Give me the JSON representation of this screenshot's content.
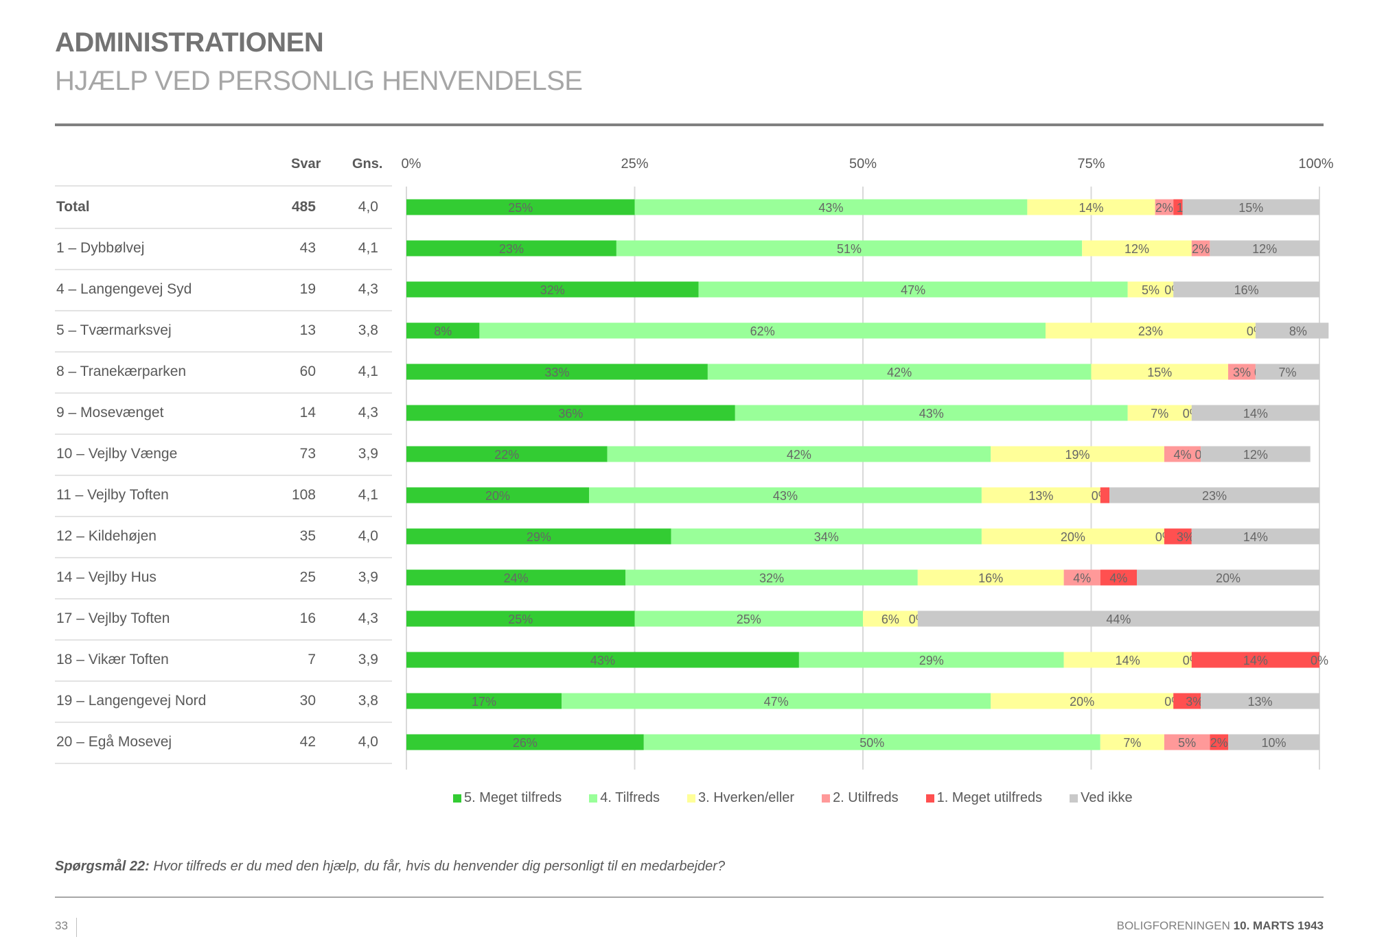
{
  "header": {
    "title": "ADMINISTRATIONEN",
    "subtitle": "HJÆLP VED PERSONLIG HENVENDELSE"
  },
  "table": {
    "col_svar": "Svar",
    "col_gns": "Gns."
  },
  "chart_data": {
    "type": "bar",
    "orientation": "horizontal",
    "stacked": true,
    "xlim": [
      0,
      100
    ],
    "x_ticks": [
      "0%",
      "25%",
      "50%",
      "75%",
      "100%"
    ],
    "grid": true,
    "legend_position": "bottom",
    "categories": [
      "Total",
      "1 – Dybbølvej",
      "4 – Langengevej Syd",
      "5 – Tværmarksvej",
      "8 – Tranekærparken",
      "9 – Mosevænget",
      "10 – Vejlby Vænge",
      "11 – Vejlby Toften",
      "12 – Kildehøjen",
      "14 – Vejlby Hus",
      "17 – Vejlby Toften",
      "18 – Vikær Toften",
      "19 – Langengevej Nord",
      "20 – Egå Mosevej"
    ],
    "svar": [
      "485",
      "43",
      "19",
      "13",
      "60",
      "14",
      "73",
      "108",
      "35",
      "25",
      "16",
      "7",
      "30",
      "42"
    ],
    "gns": [
      "4,0",
      "4,1",
      "4,3",
      "3,8",
      "4,1",
      "4,3",
      "3,9",
      "4,1",
      "4,0",
      "3,9",
      "4,3",
      "3,9",
      "3,8",
      "4,0"
    ],
    "series": [
      {
        "name": "5. Meget tilfreds",
        "color": "#33cc33",
        "values": [
          25,
          23,
          32,
          8,
          33,
          36,
          22,
          20,
          29,
          24,
          25,
          43,
          17,
          26
        ]
      },
      {
        "name": "4. Tilfreds",
        "color": "#99ff99",
        "values": [
          43,
          51,
          47,
          62,
          42,
          43,
          42,
          43,
          34,
          32,
          25,
          29,
          47,
          50
        ]
      },
      {
        "name": "3. Hverken/eller",
        "color": "#ffff99",
        "values": [
          14,
          12,
          5,
          23,
          15,
          7,
          19,
          13,
          20,
          16,
          6,
          14,
          20,
          7
        ]
      },
      {
        "name": "2. Utilfreds",
        "color": "#ff9999",
        "values": [
          2,
          2,
          0,
          0,
          3,
          0,
          4,
          0,
          0,
          4,
          0,
          0,
          0,
          5
        ]
      },
      {
        "name": "1. Meget utilfreds",
        "color": "#ff5050",
        "values": [
          1,
          0,
          0,
          0,
          0,
          0,
          0,
          1,
          3,
          4,
          0,
          14,
          3,
          2
        ]
      },
      {
        "name": "Ved ikke",
        "color": "#c9c9c9",
        "values": [
          15,
          12,
          16,
          8,
          7,
          14,
          12,
          23,
          14,
          20,
          44,
          0,
          13,
          10
        ]
      }
    ]
  },
  "footer": {
    "question_label": "Spørgsmål 22:",
    "question_text": " Hvor tilfreds er du med den hjælp, du får, hvis du henvender dig personligt til en medarbejder?",
    "page_number": "33",
    "org": "BOLIGFORENINGEN ",
    "date": "10. MARTS 1943"
  }
}
